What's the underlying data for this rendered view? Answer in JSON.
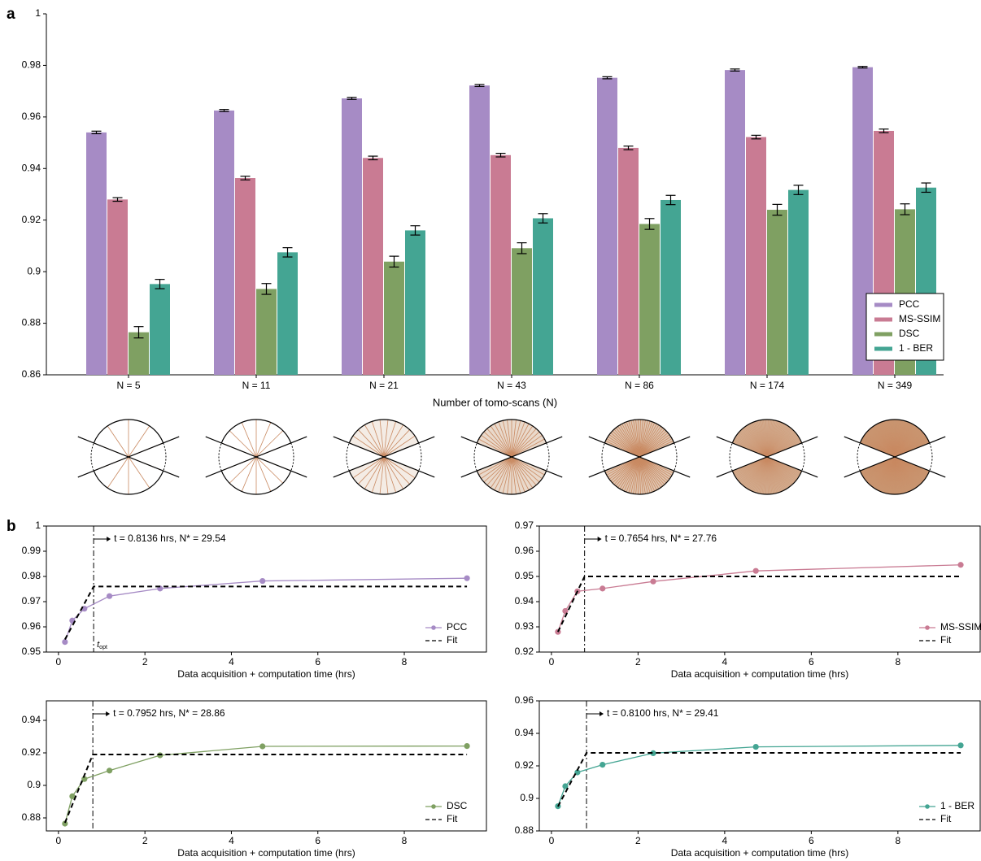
{
  "panel_labels": [
    "a",
    "b"
  ],
  "chart_data": [
    {
      "type": "bar",
      "xlabel": "Number of tomo-scans (N)",
      "categories": [
        "N = 5",
        "N = 11",
        "N = 21",
        "N = 43",
        "N = 86",
        "N = 174",
        "N = 349"
      ],
      "series": [
        {
          "name": "PCC",
          "color": "#a68bc5",
          "values": [
            0.954,
            0.9625,
            0.9672,
            0.9722,
            0.9752,
            0.9782,
            0.9793
          ],
          "errors": [
            0.0005,
            0.0004,
            0.0004,
            0.0004,
            0.0004,
            0.0004,
            0.0003
          ]
        },
        {
          "name": "MS-SSIM",
          "color": "#c97b93",
          "values": [
            0.928,
            0.9363,
            0.9441,
            0.9452,
            0.948,
            0.9522,
            0.9546
          ],
          "errors": [
            0.0007,
            0.0007,
            0.0007,
            0.0007,
            0.0007,
            0.0007,
            0.0007
          ]
        },
        {
          "name": "DSC",
          "color": "#7fa062",
          "values": [
            0.8765,
            0.8933,
            0.9039,
            0.9091,
            0.9185,
            0.924,
            0.9242
          ],
          "errors": [
            0.0022,
            0.0021,
            0.0021,
            0.0021,
            0.0021,
            0.0021,
            0.0021
          ]
        },
        {
          "name": "1 - BER",
          "color": "#44a593",
          "values": [
            0.8952,
            0.9075,
            0.916,
            0.9207,
            0.9278,
            0.9317,
            0.9326
          ],
          "errors": [
            0.0018,
            0.0018,
            0.0018,
            0.0018,
            0.0018,
            0.0018,
            0.0018
          ]
        }
      ],
      "ylim": [
        0.86,
        1
      ],
      "yticks": [
        0.86,
        0.88,
        0.9,
        0.92,
        0.94,
        0.96,
        0.98,
        1
      ],
      "legend": "lower right"
    },
    {
      "type": "line",
      "xlabel": "Data acquisition + computation time (hrs)",
      "annotation": "t = 0.8136 hrs, N* = 29.54",
      "vline": 0.8136,
      "vline_label": {
        "main": "t",
        "sub": "opt"
      },
      "series": [
        {
          "name": "PCC",
          "color": "#a68bc5",
          "marker": "o",
          "x": [
            0.15,
            0.32,
            0.6,
            1.18,
            2.35,
            4.72,
            9.45
          ],
          "values": [
            0.954,
            0.9625,
            0.9672,
            0.9722,
            0.9752,
            0.9782,
            0.9793
          ]
        },
        {
          "name": "Fit",
          "color": "#000000",
          "linestyle": "dashed",
          "x": [
            0.15,
            0.8136,
            9.45
          ],
          "values": [
            0.955,
            0.976,
            0.976
          ]
        }
      ],
      "xlim": [
        -0.28,
        9.9
      ],
      "xticks": [
        0,
        2,
        4,
        6,
        8
      ],
      "ylim": [
        0.95,
        1
      ],
      "yticks": [
        0.95,
        0.96,
        0.97,
        0.98,
        0.99,
        1
      ],
      "legend": "lower right"
    },
    {
      "type": "line",
      "xlabel": "Data acquisition + computation time (hrs)",
      "annotation": "t = 0.7654 hrs, N* = 27.76",
      "vline": 0.7654,
      "series": [
        {
          "name": "MS-SSIM",
          "color": "#c97b93",
          "marker": "o",
          "x": [
            0.15,
            0.32,
            0.6,
            1.18,
            2.35,
            4.72,
            9.45
          ],
          "values": [
            0.928,
            0.9363,
            0.9441,
            0.9452,
            0.948,
            0.9522,
            0.9546
          ]
        },
        {
          "name": "Fit",
          "color": "#000000",
          "linestyle": "dashed",
          "x": [
            0.15,
            0.7654,
            9.45
          ],
          "values": [
            0.928,
            0.95,
            0.95
          ]
        }
      ],
      "xlim": [
        -0.28,
        9.9
      ],
      "xticks": [
        0,
        2,
        4,
        6,
        8
      ],
      "ylim": [
        0.92,
        0.97
      ],
      "yticks": [
        0.92,
        0.93,
        0.94,
        0.95,
        0.96,
        0.97
      ],
      "legend": "lower right"
    },
    {
      "type": "line",
      "xlabel": "Data acquisition + computation time (hrs)",
      "annotation": "t = 0.7952 hrs, N* = 28.86",
      "vline": 0.7952,
      "series": [
        {
          "name": "DSC",
          "color": "#7fa062",
          "marker": "o",
          "x": [
            0.15,
            0.32,
            0.6,
            1.18,
            2.35,
            4.72,
            9.45
          ],
          "values": [
            0.8765,
            0.8933,
            0.9039,
            0.9091,
            0.9185,
            0.924,
            0.9242
          ]
        },
        {
          "name": "Fit",
          "color": "#000000",
          "linestyle": "dashed",
          "x": [
            0.15,
            0.7952,
            9.45
          ],
          "values": [
            0.877,
            0.919,
            0.919
          ]
        }
      ],
      "xlim": [
        -0.28,
        9.9
      ],
      "xticks": [
        0,
        2,
        4,
        6,
        8
      ],
      "ylim": [
        0.872,
        0.952
      ],
      "yticks": [
        0.88,
        0.9,
        0.92,
        0.94
      ],
      "legend": "lower right"
    },
    {
      "type": "line",
      "xlabel": "Data acquisition + computation time (hrs)",
      "annotation": "t = 0.8100 hrs, N* = 29.41",
      "vline": 0.81,
      "series": [
        {
          "name": "1 - BER",
          "color": "#44a593",
          "marker": "o",
          "x": [
            0.15,
            0.32,
            0.6,
            1.18,
            2.35,
            4.72,
            9.45
          ],
          "values": [
            0.8952,
            0.9075,
            0.916,
            0.9207,
            0.9278,
            0.9317,
            0.9326
          ]
        },
        {
          "name": "Fit",
          "color": "#000000",
          "linestyle": "dashed",
          "x": [
            0.15,
            0.81,
            9.45
          ],
          "values": [
            0.895,
            0.928,
            0.928
          ]
        }
      ],
      "xlim": [
        -0.28,
        9.9
      ],
      "xticks": [
        0,
        2,
        4,
        6,
        8
      ],
      "ylim": [
        0.88,
        0.96
      ],
      "yticks": [
        0.88,
        0.9,
        0.92,
        0.94,
        0.96
      ],
      "legend": "lower right"
    }
  ]
}
